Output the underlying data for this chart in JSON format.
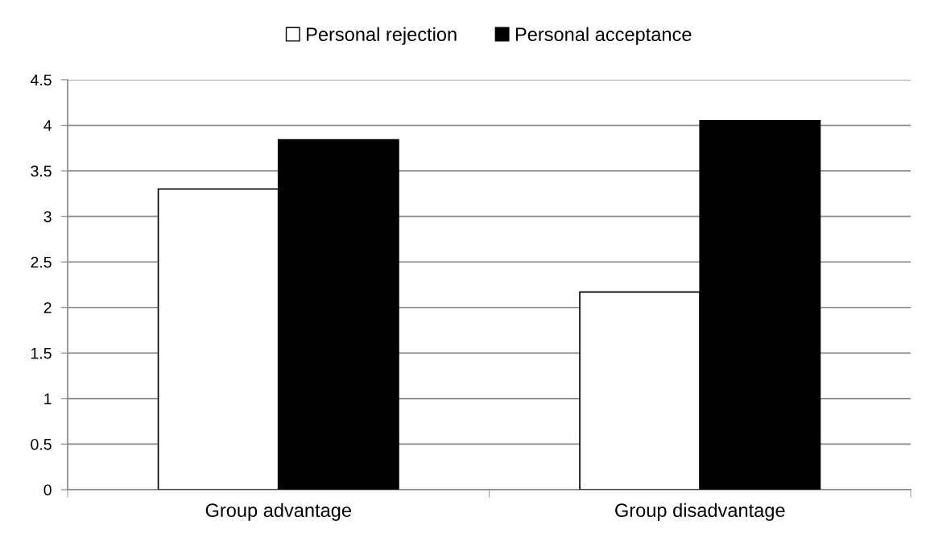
{
  "chart_data": {
    "type": "bar",
    "categories": [
      "Group advantage",
      "Group disadvantage"
    ],
    "series": [
      {
        "name": "Personal rejection",
        "color": "#ffffff",
        "values": [
          3.3,
          2.17
        ]
      },
      {
        "name": "Personal acceptance",
        "color": "#000000",
        "values": [
          3.84,
          4.05
        ]
      }
    ],
    "ylim": [
      0,
      4.5
    ],
    "yticks": [
      0,
      0.5,
      1,
      1.5,
      2,
      2.5,
      3,
      3.5,
      4,
      4.5
    ],
    "grid": "y",
    "legend": "top"
  }
}
